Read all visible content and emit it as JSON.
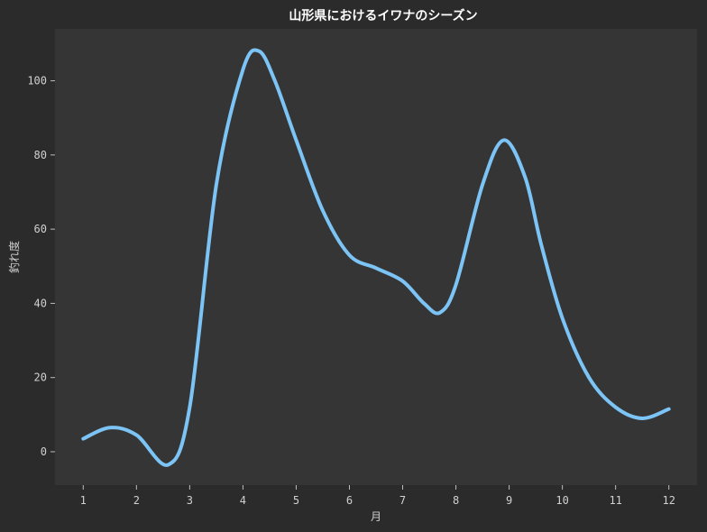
{
  "chart_data": {
    "type": "line",
    "title": "山形県におけるイワナのシーズン",
    "xlabel": "月",
    "ylabel": "釣れ度",
    "xlim": [
      0.47,
      12.53
    ],
    "ylim": [
      -9,
      114
    ],
    "x_ticks": [
      1,
      2,
      3,
      4,
      5,
      6,
      7,
      8,
      9,
      10,
      11,
      12
    ],
    "y_ticks": [
      0,
      20,
      40,
      60,
      80,
      100
    ],
    "grid": false,
    "legend": "none",
    "series": [
      {
        "color": "#7cc4f5",
        "smooth": true,
        "points": [
          [
            1,
            3.5
          ],
          [
            1.5,
            6.5
          ],
          [
            2,
            4.5
          ],
          [
            2.6,
            -3.5
          ],
          [
            3,
            12
          ],
          [
            3.5,
            72
          ],
          [
            4,
            103
          ],
          [
            4.3,
            108
          ],
          [
            4.6,
            100
          ],
          [
            5,
            84
          ],
          [
            5.5,
            65
          ],
          [
            6,
            53
          ],
          [
            6.5,
            49.5
          ],
          [
            7,
            46
          ],
          [
            7.4,
            40
          ],
          [
            7.7,
            37.5
          ],
          [
            8,
            45
          ],
          [
            8.5,
            72
          ],
          [
            8.9,
            84
          ],
          [
            9.3,
            74
          ],
          [
            9.6,
            56
          ],
          [
            10,
            36
          ],
          [
            10.5,
            20
          ],
          [
            11,
            12
          ],
          [
            11.5,
            9
          ],
          [
            12,
            11.5
          ]
        ]
      }
    ]
  },
  "colors": {
    "page_background": "#2b2b2b",
    "plot_background": "#353535",
    "line": "#7cc4f5",
    "text": "#d0d0d0"
  }
}
